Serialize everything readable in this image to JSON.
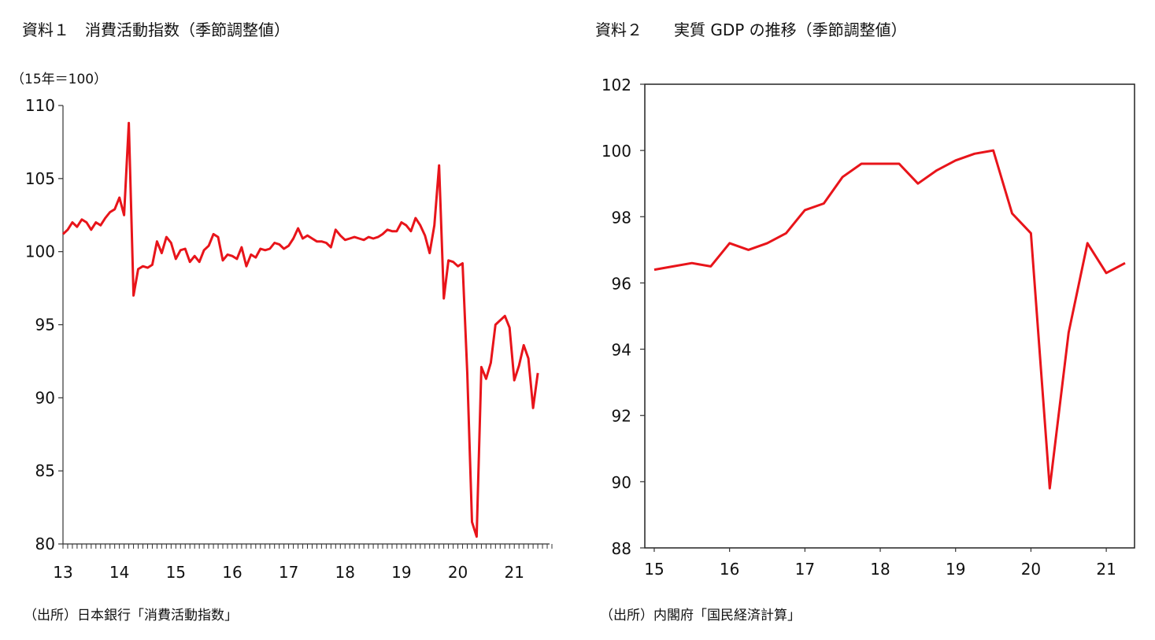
{
  "left": {
    "title": "資料１　消費活動指数（季節調整値）",
    "unit": "（15年＝100）",
    "source": "（出所）日本銀行「消費活動指数」"
  },
  "right": {
    "title": "資料２　　実質 GDP の推移（季節調整値）",
    "source": "（出所）内閣府「国民経済計算」"
  },
  "colors": {
    "line": "#e8141a",
    "axis": "#333333",
    "frame": "#222222"
  },
  "chart_data": [
    {
      "type": "line",
      "title": "資料１　消費活動指数（季節調整値）",
      "ylabel": "（15年＝100）",
      "ylim": [
        80,
        110
      ],
      "yticks": [
        80,
        85,
        90,
        95,
        100,
        105,
        110
      ],
      "xlim": [
        13,
        21.625
      ],
      "xtick_values": [
        13,
        14,
        15,
        16,
        17,
        18,
        19,
        20,
        21
      ],
      "xtick_labels": [
        "13",
        "14",
        "15",
        "16",
        "17",
        "18",
        "19",
        "20",
        "21"
      ],
      "minor_ticks_per_year": 12,
      "grid": false,
      "series": [
        {
          "values": [
            101.2,
            101.5,
            102.0,
            101.7,
            102.2,
            102.0,
            101.5,
            102.0,
            101.8,
            102.3,
            102.7,
            102.9,
            103.7,
            102.5,
            108.8,
            97.0,
            98.8,
            99.0,
            98.9,
            99.1,
            100.7,
            99.9,
            101.0,
            100.6,
            99.5,
            100.1,
            100.2,
            99.3,
            99.7,
            99.3,
            100.1,
            100.4,
            101.2,
            101.0,
            99.4,
            99.8,
            99.7,
            99.5,
            100.3,
            99.0,
            99.8,
            99.6,
            100.2,
            100.1,
            100.2,
            100.6,
            100.5,
            100.2,
            100.4,
            100.9,
            101.6,
            100.9,
            101.1,
            100.9,
            100.7,
            100.7,
            100.6,
            100.3,
            101.5,
            101.1,
            100.8,
            100.9,
            101.0,
            100.9,
            100.8,
            101.0,
            100.9,
            101.0,
            101.2,
            101.5,
            101.4,
            101.4,
            102.0,
            101.8,
            101.4,
            102.3,
            101.8,
            101.1,
            99.9,
            101.8,
            105.9,
            96.8,
            99.4,
            99.3,
            99.0,
            99.2,
            91.7,
            81.5,
            80.5,
            92.1,
            91.3,
            92.4,
            95.0,
            95.3,
            95.6,
            94.8,
            91.2,
            92.2,
            93.6,
            92.7,
            89.3,
            91.7
          ]
        }
      ],
      "source": "（出所）日本銀行「消費活動指数」"
    },
    {
      "type": "line",
      "title": "資料２　　実質 GDP の推移（季節調整値）",
      "ylim": [
        88,
        102
      ],
      "yticks": [
        88,
        90,
        92,
        94,
        96,
        98,
        100,
        102
      ],
      "xlim": [
        14.875,
        21.375
      ],
      "xtick_values": [
        15,
        16,
        17,
        18,
        19,
        20,
        21
      ],
      "xtick_labels": [
        "15",
        "16",
        "17",
        "18",
        "19",
        "20",
        "21"
      ],
      "grid": false,
      "frame": true,
      "series": [
        {
          "x": [
            15.0,
            15.25,
            15.5,
            15.75,
            16.0,
            16.25,
            16.5,
            16.75,
            17.0,
            17.25,
            17.5,
            17.75,
            18.0,
            18.25,
            18.5,
            18.75,
            19.0,
            19.25,
            19.5,
            19.75,
            20.0,
            20.25,
            20.5,
            20.75,
            21.0,
            21.25
          ],
          "values": [
            96.4,
            96.5,
            96.6,
            96.5,
            97.2,
            97.0,
            97.2,
            97.5,
            98.2,
            98.4,
            99.2,
            99.6,
            99.6,
            99.6,
            99.0,
            99.4,
            99.7,
            99.9,
            100.0,
            98.1,
            97.5,
            89.8,
            94.5,
            97.2,
            96.3,
            96.6
          ]
        }
      ],
      "source": "（出所）内閣府「国民経済計算」"
    }
  ]
}
